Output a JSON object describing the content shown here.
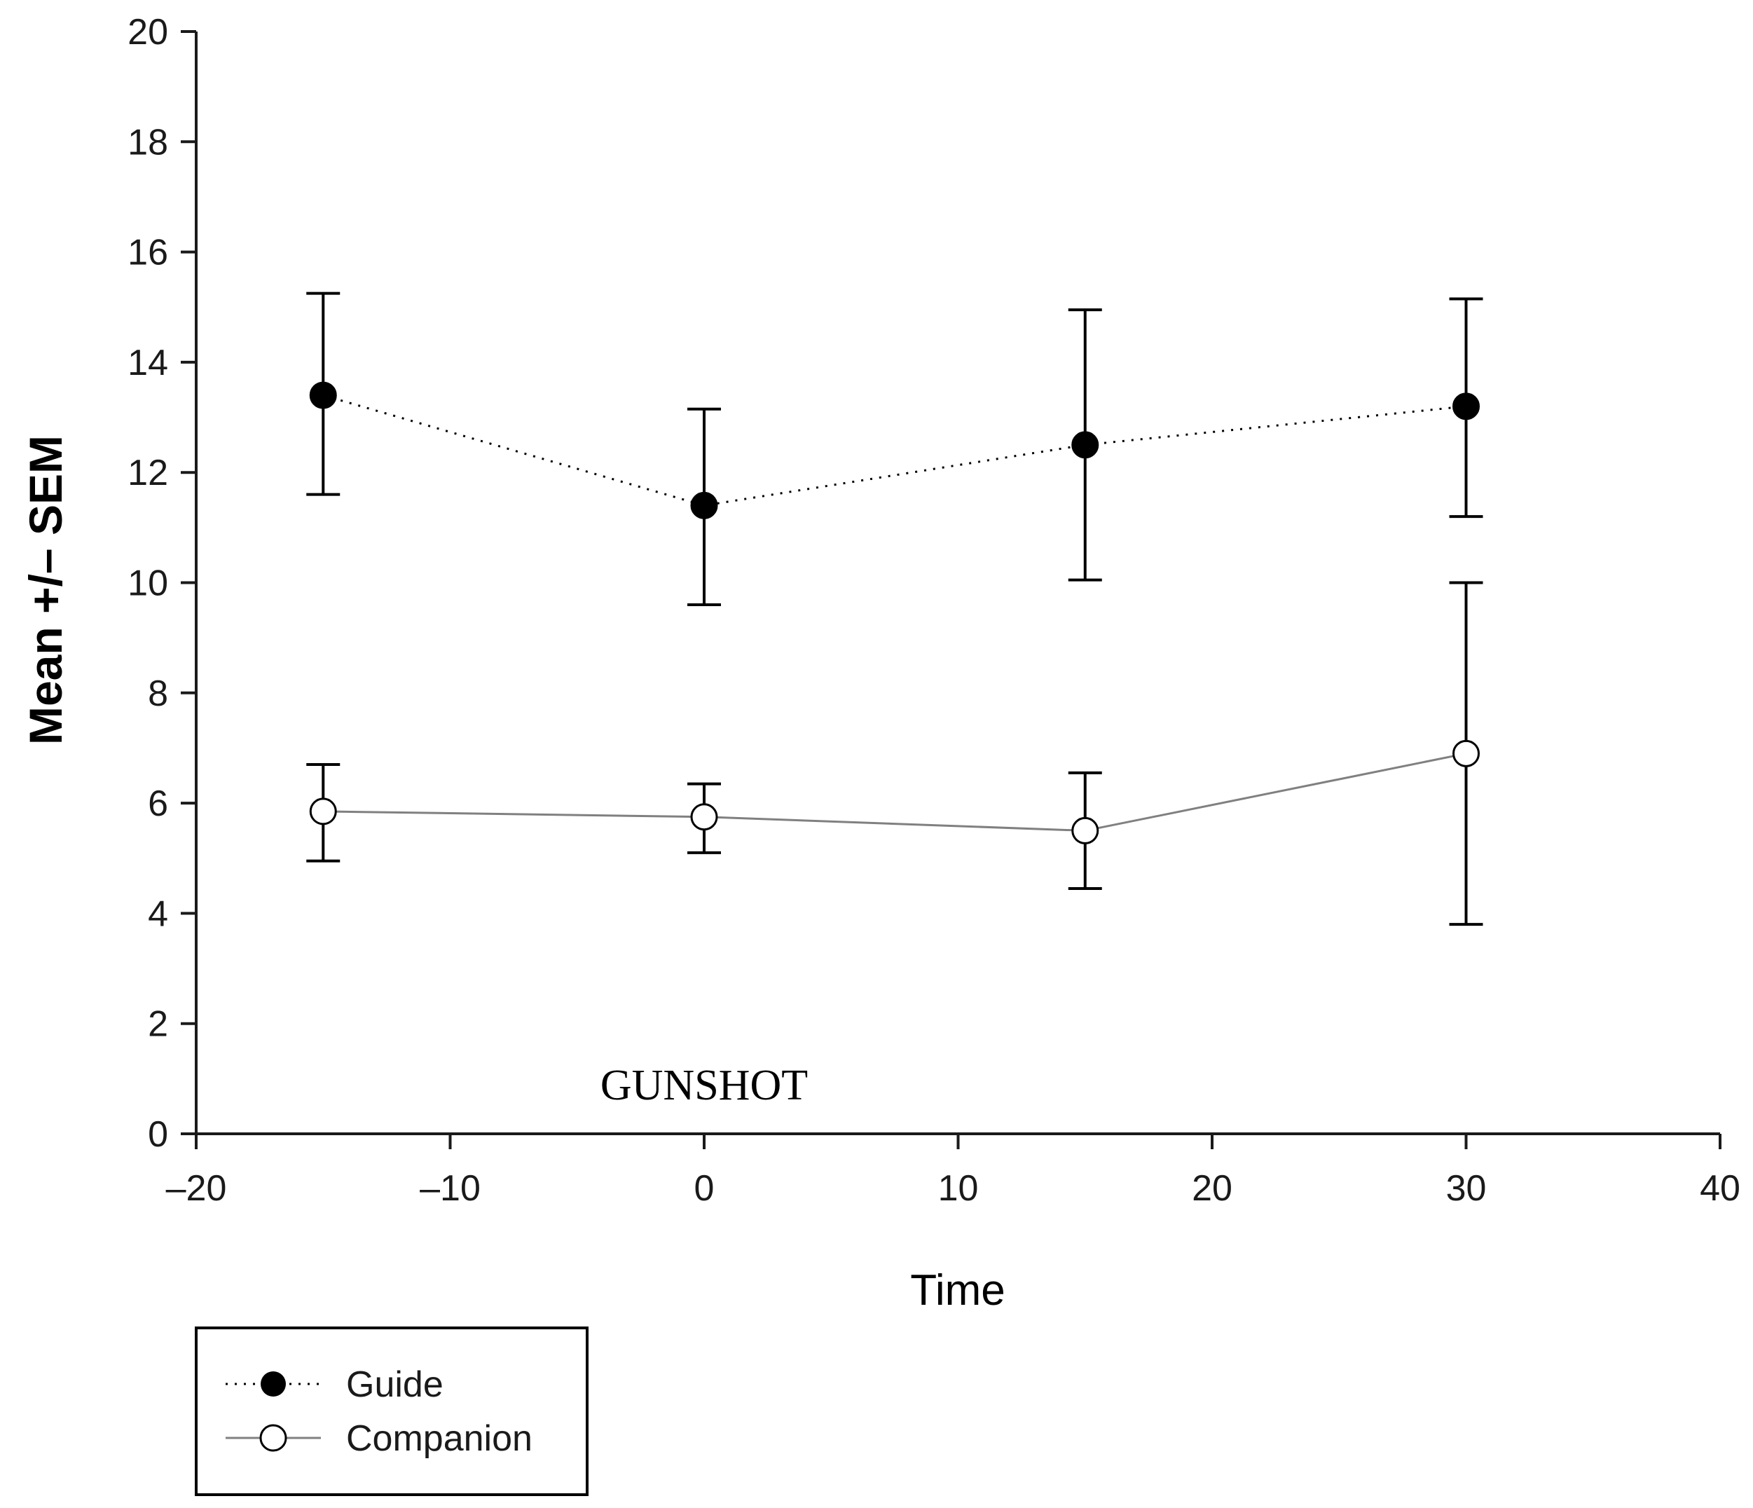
{
  "chart_data": {
    "type": "line",
    "title": "",
    "xlabel": "Time",
    "ylabel": "Mean +/– SEM",
    "xlim": [
      -20,
      40
    ],
    "ylim": [
      0,
      20
    ],
    "x_ticks": [
      -20,
      -10,
      0,
      10,
      20,
      30,
      40
    ],
    "x_tick_labels": [
      "–20",
      "–10",
      "0",
      "10",
      "20",
      "30",
      "40"
    ],
    "y_ticks": [
      0,
      2,
      4,
      6,
      8,
      10,
      12,
      14,
      16,
      18,
      20
    ],
    "y_tick_labels": [
      "0",
      "2",
      "4",
      "6",
      "8",
      "10",
      "12",
      "14",
      "16",
      "18",
      "20"
    ],
    "grid": false,
    "legend_position": "bottom-left",
    "annotation": {
      "text": "GUNSHOT",
      "x": 0,
      "y": 0.9
    },
    "series": [
      {
        "name": "Guide",
        "marker": "filled-circle",
        "line_style": "dotted",
        "marker_color": "#000000",
        "line_color": "#000000",
        "x": [
          -15,
          0,
          15,
          30
        ],
        "values": [
          13.4,
          11.4,
          12.5,
          13.2
        ],
        "error_low": [
          11.6,
          9.6,
          10.05,
          11.2
        ],
        "error_high": [
          15.25,
          13.15,
          14.95,
          15.15
        ]
      },
      {
        "name": "Companion",
        "marker": "open-circle",
        "line_style": "solid",
        "marker_color": "#000000",
        "line_color": "#808080",
        "x": [
          -15,
          0,
          15,
          30
        ],
        "values": [
          5.85,
          5.75,
          5.5,
          6.9
        ],
        "error_low": [
          4.95,
          5.1,
          4.45,
          3.8
        ],
        "error_high": [
          6.7,
          6.35,
          6.55,
          10.0
        ]
      }
    ]
  }
}
